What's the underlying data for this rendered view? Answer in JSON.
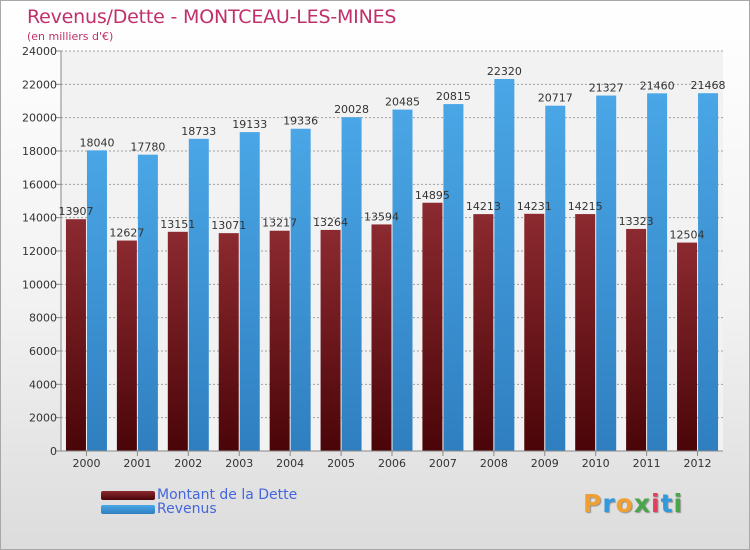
{
  "title": "Revenus/Dette - MONTCEAU-LES-MINES",
  "subtitle": "(en milliers d'€)",
  "logo": {
    "letters": [
      "P",
      "r",
      "o",
      "x",
      "i",
      "t",
      "i"
    ],
    "colors": [
      "#f0a030",
      "#3399dd",
      "#f0a030",
      "#4aa64a",
      "#e04060",
      "#3399dd",
      "#4aa64a"
    ]
  },
  "legend": {
    "items": [
      {
        "label": "Montant de la Dette",
        "color": "#6e0d15"
      },
      {
        "label": "Revenus",
        "color": "#3d95d8"
      }
    ]
  },
  "chart_data": {
    "type": "bar",
    "categories": [
      "2000",
      "2001",
      "2002",
      "2003",
      "2004",
      "2005",
      "2006",
      "2007",
      "2008",
      "2009",
      "2010",
      "2011",
      "2012"
    ],
    "series": [
      {
        "name": "Montant de la Dette",
        "color": "#7a1820",
        "values": [
          13907,
          12627,
          13151,
          13071,
          13217,
          13264,
          13594,
          14895,
          14213,
          14231,
          14215,
          13323,
          12504
        ],
        "labels": [
          "13907",
          "12627",
          "13151",
          "13071",
          "13217",
          "13264",
          "13594",
          "14895",
          "14213",
          "14231",
          "14215",
          "13323",
          "12504"
        ]
      },
      {
        "name": "Revenus",
        "color": "#3d95d8",
        "values": [
          18040,
          17780,
          18733,
          19133,
          19336,
          20028,
          20485,
          20815,
          22320,
          20717,
          21327,
          21460,
          21468
        ],
        "labels": [
          "18040",
          "17780",
          "18733",
          "19133",
          "19336",
          "20028",
          "20485",
          "20815",
          "22320",
          "20717",
          "21327",
          "21460",
          "21468"
        ]
      }
    ],
    "ylim": [
      0,
      24000
    ],
    "yticks": [
      0,
      2000,
      4000,
      6000,
      8000,
      10000,
      12000,
      14000,
      16000,
      18000,
      20000,
      22000,
      24000
    ],
    "grid": true,
    "legend_position": "bottom-left"
  }
}
